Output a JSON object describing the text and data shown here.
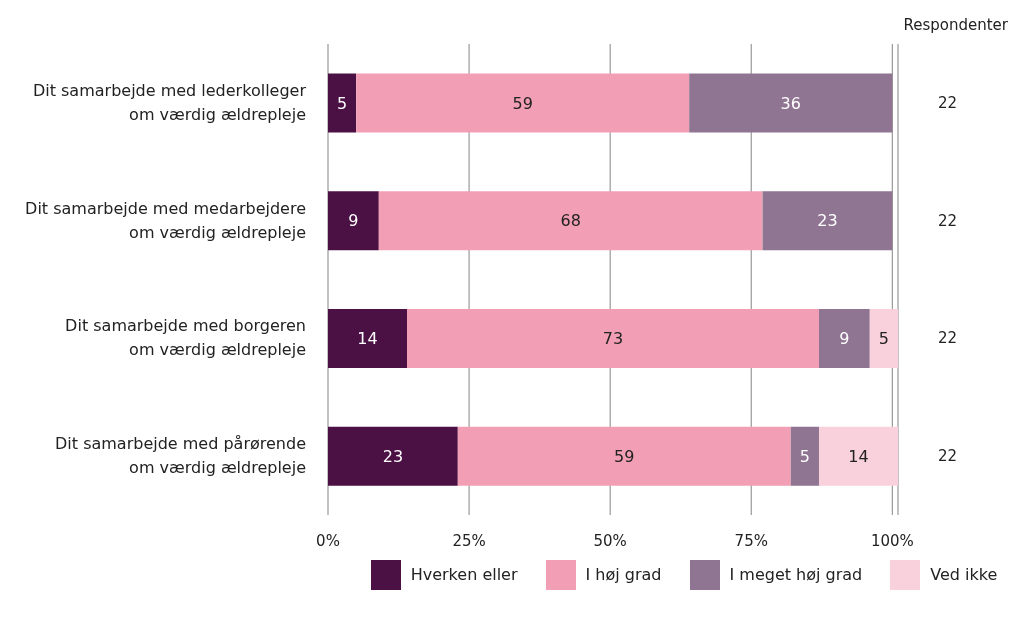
{
  "chart_data": {
    "type": "bar",
    "orientation": "horizontal",
    "stacked": true,
    "data_labels": true,
    "categories": [
      "Dit samarbejde med lederkolleger om værdig ældrepleje",
      "Dit samarbejde med medarbejdere om værdig ældrepleje",
      "Dit samarbejde med borgeren om værdig ældrepleje",
      "Dit samarbejde med pårørende om værdig ældrepleje"
    ],
    "series": [
      {
        "name": "Hverken eller",
        "color": "#4b1145",
        "values": [
          5,
          9,
          14,
          23
        ]
      },
      {
        "name": "I høj grad",
        "color": "#f29fb5",
        "values": [
          59,
          68,
          73,
          59
        ]
      },
      {
        "name": "I meget høj grad",
        "color": "#8f7592",
        "values": [
          36,
          23,
          9,
          5
        ]
      },
      {
        "name": "Ved ikke",
        "color": "#f9d1dc",
        "values": [
          null,
          null,
          5,
          14
        ]
      }
    ],
    "xlim": [
      0,
      101
    ],
    "xticks": [
      {
        "value": 0,
        "label": "0%"
      },
      {
        "value": 25,
        "label": "25%"
      },
      {
        "value": 50,
        "label": "50%"
      },
      {
        "value": 75,
        "label": "75%"
      },
      {
        "value": 100,
        "label": "100%"
      }
    ],
    "grid": "x",
    "legend": "bottom",
    "annotations": [
      "Respondenter",
      "22",
      "22",
      "22",
      "22"
    ]
  }
}
